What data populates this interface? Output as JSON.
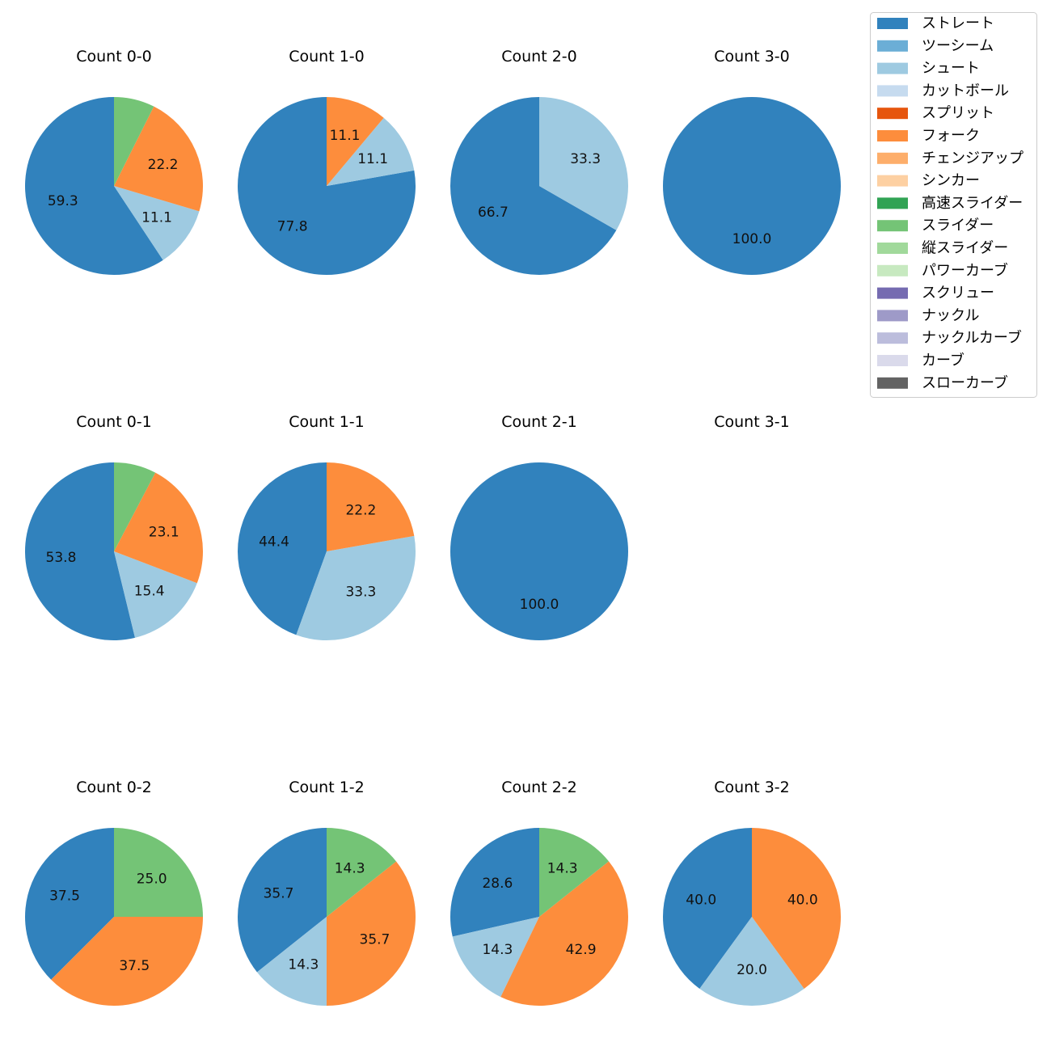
{
  "chart_data": {
    "type": "pie",
    "legend_position": "top-right",
    "legend": [
      {
        "name": "ストレート",
        "color": "#3182bd"
      },
      {
        "name": "ツーシーム",
        "color": "#6baed6"
      },
      {
        "name": "シュート",
        "color": "#9ecae1"
      },
      {
        "name": "カットボール",
        "color": "#c6dbef"
      },
      {
        "name": "スプリット",
        "color": "#e6550d"
      },
      {
        "name": "フォーク",
        "color": "#fd8d3c"
      },
      {
        "name": "チェンジアップ",
        "color": "#fdae6b"
      },
      {
        "name": "シンカー",
        "color": "#fdd0a2"
      },
      {
        "name": "高速スライダー",
        "color": "#31a354"
      },
      {
        "name": "スライダー",
        "color": "#74c476"
      },
      {
        "name": "縦スライダー",
        "color": "#a1d99b"
      },
      {
        "name": "パワーカーブ",
        "color": "#c7e9c0"
      },
      {
        "name": "スクリュー",
        "color": "#756bb1"
      },
      {
        "name": "ナックル",
        "color": "#9e9ac8"
      },
      {
        "name": "ナックルカーブ",
        "color": "#bcbddc"
      },
      {
        "name": "カーブ",
        "color": "#dadaeb"
      },
      {
        "name": "スローカーブ",
        "color": "#636363"
      }
    ],
    "charts": [
      {
        "title": "Count 0-0",
        "slices": [
          {
            "label": "ストレート",
            "value": 59.3,
            "text": "59.3"
          },
          {
            "label": "シュート",
            "value": 11.1,
            "text": "11.1"
          },
          {
            "label": "フォーク",
            "value": 22.2,
            "text": "22.2"
          },
          {
            "label": "スライダー",
            "value": 7.4,
            "text": ""
          }
        ]
      },
      {
        "title": "Count 1-0",
        "slices": [
          {
            "label": "ストレート",
            "value": 77.8,
            "text": "77.8"
          },
          {
            "label": "シュート",
            "value": 11.1,
            "text": "11.1"
          },
          {
            "label": "フォーク",
            "value": 11.1,
            "text": "11.1"
          }
        ]
      },
      {
        "title": "Count 2-0",
        "slices": [
          {
            "label": "ストレート",
            "value": 66.7,
            "text": "66.7"
          },
          {
            "label": "シュート",
            "value": 33.3,
            "text": "33.3"
          }
        ]
      },
      {
        "title": "Count 3-0",
        "slices": [
          {
            "label": "ストレート",
            "value": 100.0,
            "text": "100.0"
          }
        ]
      },
      {
        "title": "Count 0-1",
        "slices": [
          {
            "label": "ストレート",
            "value": 53.8,
            "text": "53.8"
          },
          {
            "label": "シュート",
            "value": 15.4,
            "text": "15.4"
          },
          {
            "label": "フォーク",
            "value": 23.1,
            "text": "23.1"
          },
          {
            "label": "スライダー",
            "value": 7.7,
            "text": ""
          }
        ]
      },
      {
        "title": "Count 1-1",
        "slices": [
          {
            "label": "ストレート",
            "value": 44.4,
            "text": "44.4"
          },
          {
            "label": "シュート",
            "value": 33.3,
            "text": "33.3"
          },
          {
            "label": "フォーク",
            "value": 22.2,
            "text": "22.2"
          }
        ]
      },
      {
        "title": "Count 2-1",
        "slices": [
          {
            "label": "ストレート",
            "value": 100.0,
            "text": "100.0"
          }
        ]
      },
      {
        "title": "Count 3-1",
        "slices": []
      },
      {
        "title": "Count 0-2",
        "slices": [
          {
            "label": "ストレート",
            "value": 37.5,
            "text": "37.5"
          },
          {
            "label": "フォーク",
            "value": 37.5,
            "text": "37.5"
          },
          {
            "label": "スライダー",
            "value": 25.0,
            "text": "25.0"
          }
        ]
      },
      {
        "title": "Count 1-2",
        "slices": [
          {
            "label": "ストレート",
            "value": 35.7,
            "text": "35.7"
          },
          {
            "label": "シュート",
            "value": 14.3,
            "text": "14.3"
          },
          {
            "label": "フォーク",
            "value": 35.7,
            "text": "35.7"
          },
          {
            "label": "スライダー",
            "value": 14.3,
            "text": "14.3"
          }
        ]
      },
      {
        "title": "Count 2-2",
        "slices": [
          {
            "label": "ストレート",
            "value": 28.6,
            "text": "28.6"
          },
          {
            "label": "シュート",
            "value": 14.3,
            "text": "14.3"
          },
          {
            "label": "フォーク",
            "value": 42.9,
            "text": "42.9"
          },
          {
            "label": "スライダー",
            "value": 14.3,
            "text": "14.3"
          }
        ]
      },
      {
        "title": "Count 3-2",
        "slices": [
          {
            "label": "ストレート",
            "value": 40.0,
            "text": "40.0"
          },
          {
            "label": "シュート",
            "value": 20.0,
            "text": "20.0"
          },
          {
            "label": "フォーク",
            "value": 40.0,
            "text": "40.0"
          }
        ]
      }
    ]
  }
}
